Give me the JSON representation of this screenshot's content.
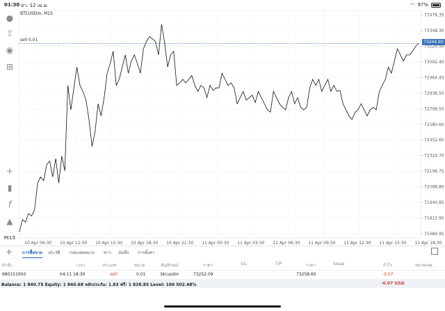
{
  "status_bar": {
    "time": "01:30",
    "date": "อา. 12 เม.ย.",
    "battery": "97%"
  },
  "toolbar": {
    "items": [
      "account-icon",
      "trade-icon",
      "chat-icon",
      "new-order-icon",
      "crosshair-icon",
      "indicators-icon",
      "function-icon",
      "objects-icon"
    ],
    "timeframe": "M15"
  },
  "chart": {
    "symbol_title": "BTCUSDm, M15",
    "order_label": "sell 0.01",
    "current_price": "73244.60",
    "line_color": "#111111",
    "order_line_color": "#3b73b8",
    "price_labels": [
      "73476.35",
      "73348.30",
      "73220.50",
      "73092.40",
      "72964.45",
      "72836.50",
      "72708.55",
      "72580.60",
      "72452.65",
      "72324.70",
      "72196.75",
      "72068.80",
      "71940.85",
      "71812.90",
      "71684.95"
    ],
    "time_labels": [
      "10 Apr 09:30",
      "10 Apr 12:30",
      "10 Apr 15:30",
      "10 Apr 18:30",
      "10 Apr 21:30",
      "11 Apr 00:30",
      "11 Apr 03:30",
      "11 Apr 06:30",
      "11 Apr 09:30",
      "11 Apr 12:30",
      "11 Apr 15:30",
      "11 Apr 18:30"
    ]
  },
  "chart_data": {
    "type": "line",
    "title": "BTCUSDm, M15",
    "ylim": [
      71650,
      73520
    ],
    "y": [
      71700,
      71800,
      71780,
      71850,
      71830,
      71880,
      72100,
      72150,
      72120,
      72250,
      72280,
      72150,
      72300,
      72100,
      72320,
      72200,
      72900,
      72700,
      72880,
      73050,
      72900,
      72850,
      72780,
      72620,
      72400,
      72520,
      72750,
      72650,
      72800,
      73000,
      73080,
      73180,
      72900,
      72950,
      73050,
      73150,
      73000,
      73100,
      73150,
      73080,
      73000,
      73200,
      73260,
      73300,
      73280,
      73260,
      73150,
      73400,
      73250,
      73050,
      73150,
      73180,
      72900,
      72920,
      72950,
      72920,
      72950,
      72980,
      72900,
      72850,
      72900,
      72880,
      72800,
      72900,
      72860,
      72880,
      72880,
      73000,
      72950,
      72900,
      72920,
      72880,
      72750,
      72800,
      72850,
      72780,
      72800,
      72820,
      72760,
      72850,
      72800,
      72750,
      72700,
      72680,
      72850,
      72800,
      72750,
      72720,
      72700,
      72800,
      72850,
      72750,
      72800,
      72720,
      72700,
      72720,
      72880,
      72950,
      72900,
      72950,
      72850,
      72900,
      72950,
      72850,
      72900,
      72850,
      72860,
      72750,
      72700,
      72650,
      72620,
      72680,
      72700,
      72750,
      72700,
      72650,
      72700,
      72720,
      72700,
      72850,
      72900,
      72950,
      73050,
      73000,
      73100,
      73200,
      73150,
      73100,
      73150,
      73150,
      73180,
      73220,
      73244
    ],
    "x_labels": [
      "10 Apr 09:30",
      "10 Apr 12:30",
      "10 Apr 15:30",
      "10 Apr 18:30",
      "10 Apr 21:30",
      "11 Apr 00:30",
      "11 Apr 03:30",
      "11 Apr 06:30",
      "11 Apr 09:30",
      "11 Apr 12:30",
      "11 Apr 15:30",
      "11 Apr 18:30"
    ],
    "order_price": 73244.6,
    "grid": true
  },
  "tabs": [
    {
      "label": "การซื้อขาย",
      "active": true
    },
    {
      "label": "ประวัติ",
      "active": false
    },
    {
      "label": "กล่องจดหมาย",
      "active": false
    },
    {
      "label": "ข่าว",
      "active": false
    },
    {
      "label": "บันทึก",
      "active": false
    },
    {
      "label": "การตั้งค่า",
      "active": false
    }
  ],
  "table": {
    "headers": [
      "คำสั่ง",
      "เวลา",
      "ประเภท",
      "ขนาด",
      "สัญลักษณ์",
      "ราคา",
      "S/L",
      "T/P",
      "ราคา",
      "Swap",
      "กำไร",
      "หมายเหตุ"
    ],
    "row": {
      "order": "980151950",
      "time": "04.11 18:30",
      "type": "sell",
      "size": "0.01",
      "symbol": "btcusdm",
      "price_open": "73252.09",
      "price_current": "73258.60",
      "profit": "-0.07"
    }
  },
  "balance": {
    "text": "Balance: 1 840.75 Equity: 1 840.68 หลักประกัน: 1.83 ฟรี: 1 838.85 Level: 100 502.48%",
    "pnl": "-0.07  USD"
  }
}
